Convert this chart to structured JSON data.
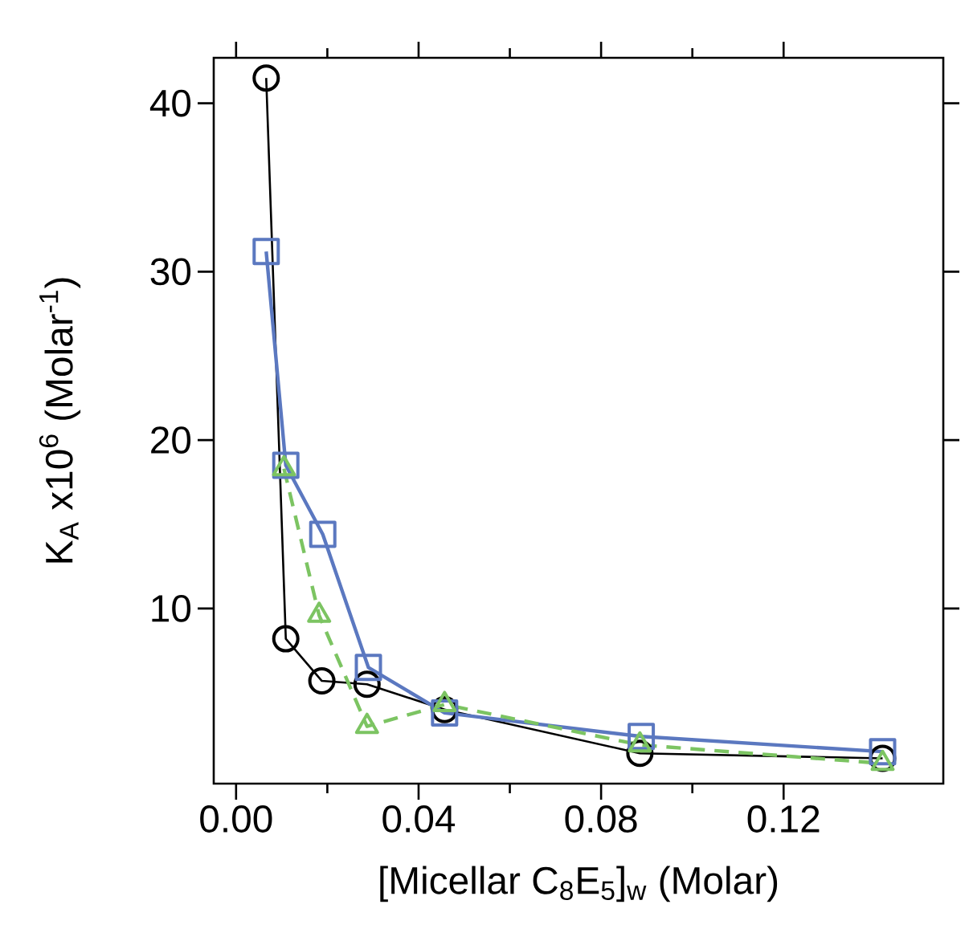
{
  "chart_data": {
    "type": "line",
    "xlabel": "[Micellar C$_{8}$E$_{5}$]$_{w}$  (Molar)",
    "ylabel": "K$_{A}$ x10$^{6}$  (Molar$^{-1}$)",
    "xlim": [
      -0.0049,
      0.155
    ],
    "ylim": [
      -0.4,
      42.7
    ],
    "xticks": [
      {
        "value": 0,
        "label": "0.00"
      },
      {
        "value": 0.04,
        "label": "0.04"
      },
      {
        "value": 0.08,
        "label": "0.08"
      },
      {
        "value": 0.12,
        "label": "0.12"
      }
    ],
    "yticks": [
      10,
      20,
      30,
      40
    ],
    "grid": false,
    "series": [
      {
        "color": "#000000",
        "marker": "circle",
        "line_style": "solid",
        "x": [
          0.0066,
          0.0109,
          0.0188,
          0.0287,
          0.0457,
          0.0885,
          0.1417
        ],
        "values": [
          41.5,
          8.2,
          5.7,
          5.5,
          4.0,
          1.4,
          1.1
        ]
      },
      {
        "color": "#5b78c0",
        "marker": "square",
        "line_style": "solid",
        "x": [
          0.0066,
          0.0109,
          0.019,
          0.029,
          0.0457,
          0.0888,
          0.1417
        ],
        "values": [
          31.2,
          18.5,
          14.4,
          6.5,
          3.8,
          2.4,
          1.5
        ]
      },
      {
        "color": "#7cc462",
        "marker": "triangle",
        "line_style": "dashed",
        "x": [
          0.0105,
          0.0182,
          0.0287,
          0.0457,
          0.0885,
          0.1417
        ],
        "values": [
          18.3,
          9.6,
          3.0,
          4.3,
          1.9,
          0.8
        ]
      }
    ]
  }
}
